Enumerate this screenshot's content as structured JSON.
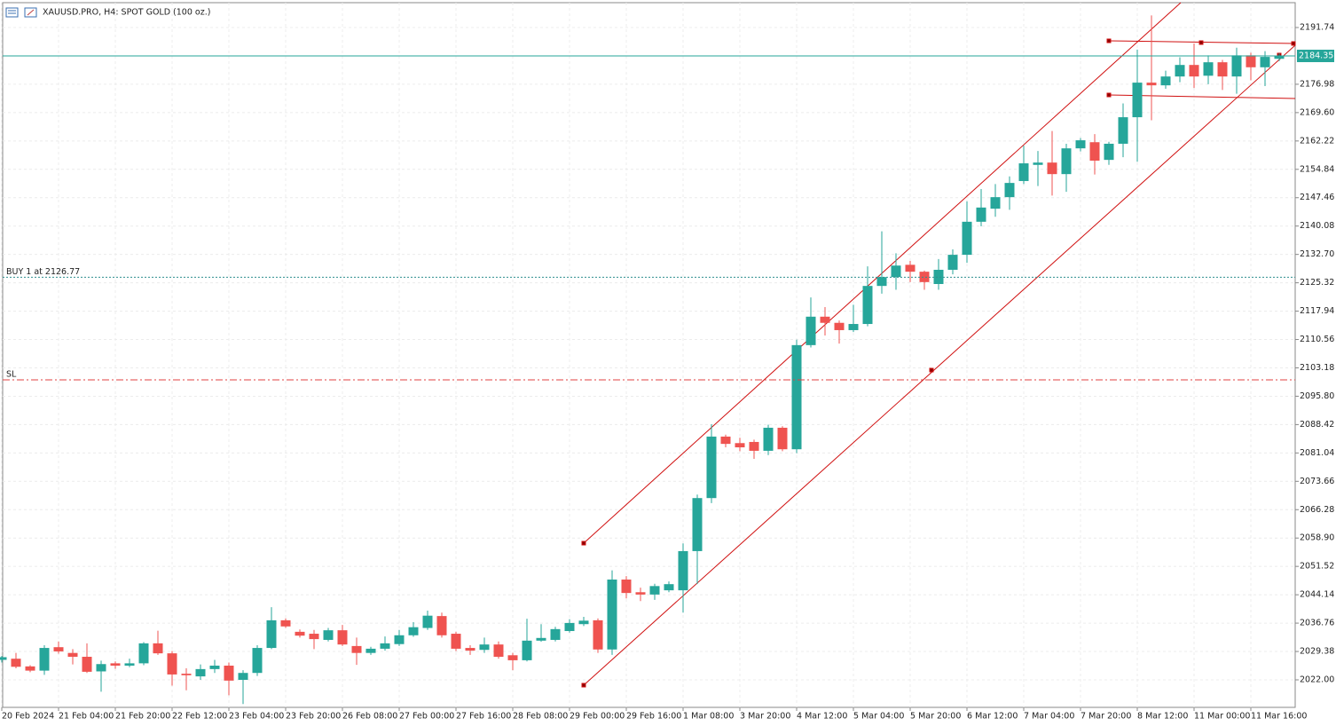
{
  "chart_data": {
    "type": "candlestick",
    "title": "XAUUSD.PRO, H4:  SPOT GOLD (100 oz.)",
    "categories": [
      "20 Feb 2024",
      null,
      null,
      null,
      "21 Feb 04:00",
      null,
      null,
      null,
      "21 Feb 20:00",
      null,
      null,
      null,
      "22 Feb 12:00",
      null,
      null,
      null,
      "23 Feb 04:00",
      null,
      null,
      null,
      "23 Feb 20:00",
      null,
      null,
      null,
      "26 Feb 08:00",
      null,
      null,
      null,
      "27 Feb 00:00",
      null,
      null,
      null,
      "27 Feb 16:00",
      null,
      null,
      null,
      "28 Feb 08:00",
      null,
      null,
      null,
      "29 Feb 00:00",
      null,
      null,
      null,
      "29 Feb 16:00",
      null,
      null,
      null,
      "1 Mar 08:00",
      null,
      null,
      null,
      "3 Mar 20:00",
      null,
      null,
      null,
      "4 Mar 12:00",
      null,
      null,
      null,
      "5 Mar 04:00",
      null,
      null,
      null,
      "5 Mar 20:00",
      null,
      null,
      null,
      "6 Mar 12:00",
      null,
      null,
      null,
      "7 Mar 04:00",
      null,
      null,
      null,
      "7 Mar 20:00",
      null,
      null,
      null,
      "8 Mar 12:00",
      null,
      null,
      null,
      "11 Mar 00:00",
      null,
      null,
      null,
      "11 Mar 16:00",
      null,
      null
    ],
    "open": [
      2027.2,
      2027.5,
      2025.5,
      2024.4,
      2030.5,
      2029.0,
      2028.0,
      2024.2,
      2026.3,
      2025.7,
      2026.3,
      2031.5,
      2028.9,
      2023.6,
      2022.9,
      2024.8,
      2025.7,
      2022.0,
      2023.8,
      2030.3,
      2037.5,
      2034.5,
      2034.0,
      2032.4,
      2034.9,
      2030.8,
      2029.0,
      2030.1,
      2031.3,
      2033.6,
      2035.5,
      2038.6,
      2034.0,
      2030.3,
      2029.8,
      2031.2,
      2028.4,
      2027.1,
      2032.2,
      2032.4,
      2034.7,
      2036.5,
      2037.5,
      2029.9,
      2048.1,
      2044.8,
      2044.2,
      2045.3,
      2045.3,
      2055.5,
      2069.3,
      2085.3,
      2083.6,
      2083.9,
      2081.6,
      2087.6,
      2082.0,
      2109.1,
      2116.5,
      2114.9,
      2113.0,
      2114.6,
      2124.5,
      2126.8,
      2130.0,
      2128.2,
      2125.0,
      2128.7,
      2132.6,
      2141.2,
      2144.6,
      2147.6,
      2151.8,
      2156.0,
      2156.6,
      2153.6,
      2160.3,
      2161.9,
      2157.3,
      2161.5,
      2168.4,
      2177.4,
      2176.7,
      2179.0,
      2182.0,
      2179.2,
      2182.7,
      2179.0,
      2184.5,
      2181.4,
      2183.6
    ],
    "high": [
      2028.2,
      2029.0,
      2025.8,
      2031.0,
      2032.0,
      2030.0,
      2031.5,
      2027.0,
      2026.8,
      2027.5,
      2031.8,
      2034.8,
      2029.5,
      2025.0,
      2026.0,
      2027.2,
      2026.5,
      2024.5,
      2031.0,
      2040.9,
      2038.0,
      2035.1,
      2035.0,
      2035.5,
      2036.3,
      2033.0,
      2030.6,
      2033.3,
      2035.0,
      2037.0,
      2040.0,
      2039.5,
      2034.5,
      2031.0,
      2033.0,
      2032.0,
      2029.0,
      2037.9,
      2036.5,
      2035.8,
      2037.8,
      2038.4,
      2038.0,
      2050.5,
      2049.0,
      2046.0,
      2047.0,
      2047.6,
      2057.5,
      2070.2,
      2088.5,
      2085.8,
      2085.0,
      2084.5,
      2088.4,
      2088.0,
      2110.5,
      2121.5,
      2119.0,
      2115.5,
      2119.6,
      2129.6,
      2138.7,
      2133.0,
      2131.0,
      2128.5,
      2131.5,
      2134.0,
      2146.5,
      2149.7,
      2151.0,
      2153.0,
      2161.0,
      2159.6,
      2164.8,
      2161.5,
      2163.0,
      2164.0,
      2162.0,
      2172.0,
      2186.0,
      2194.9,
      2180.5,
      2184.0,
      2187.6,
      2184.5,
      2183.3,
      2186.5,
      2185.2,
      2185.6,
      2185.0
    ],
    "low": [
      2026.5,
      2025.0,
      2024.0,
      2023.3,
      2028.8,
      2026.0,
      2023.8,
      2018.9,
      2024.9,
      2025.3,
      2025.8,
      2028.5,
      2020.5,
      2019.3,
      2022.0,
      2023.8,
      2018.0,
      2015.7,
      2023.0,
      2030.0,
      2035.5,
      2033.0,
      2030.0,
      2032.0,
      2030.8,
      2025.9,
      2028.5,
      2029.6,
      2030.8,
      2033.2,
      2035.0,
      2033.0,
      2029.5,
      2028.5,
      2029.0,
      2027.5,
      2024.5,
      2026.8,
      2031.9,
      2032.0,
      2034.3,
      2036.0,
      2029.0,
      2028.5,
      2043.2,
      2042.5,
      2042.8,
      2044.8,
      2039.5,
      2046.9,
      2068.0,
      2082.5,
      2081.5,
      2079.5,
      2080.5,
      2081.5,
      2081.0,
      2108.5,
      2111.6,
      2109.5,
      2112.5,
      2114.0,
      2122.5,
      2123.5,
      2125.5,
      2123.5,
      2123.5,
      2127.5,
      2130.5,
      2140.0,
      2142.5,
      2144.3,
      2151.0,
      2150.5,
      2148.0,
      2149.0,
      2159.5,
      2153.5,
      2156.0,
      2158.0,
      2156.8,
      2167.6,
      2175.8,
      2177.5,
      2176.0,
      2177.0,
      2175.5,
      2174.5,
      2178.0,
      2176.5,
      2183.0
    ],
    "close": [
      2027.9,
      2025.4,
      2024.4,
      2030.3,
      2029.4,
      2028.0,
      2024.1,
      2026.1,
      2025.7,
      2026.3,
      2031.5,
      2028.9,
      2023.4,
      2023.2,
      2024.8,
      2025.7,
      2021.8,
      2023.8,
      2030.3,
      2037.5,
      2035.9,
      2033.5,
      2032.6,
      2034.9,
      2031.2,
      2029.0,
      2030.1,
      2031.5,
      2033.6,
      2035.7,
      2038.7,
      2033.6,
      2030.1,
      2029.6,
      2031.2,
      2028.0,
      2027.1,
      2032.2,
      2032.9,
      2035.2,
      2036.8,
      2037.4,
      2029.9,
      2048.1,
      2044.6,
      2044.2,
      2046.4,
      2046.9,
      2055.5,
      2069.3,
      2085.3,
      2083.4,
      2082.5,
      2081.6,
      2087.6,
      2082.0,
      2109.1,
      2116.5,
      2114.9,
      2113.0,
      2114.6,
      2124.5,
      2126.8,
      2129.8,
      2128.2,
      2125.5,
      2128.7,
      2132.6,
      2141.2,
      2144.9,
      2147.6,
      2151.3,
      2156.4,
      2156.6,
      2153.6,
      2160.3,
      2162.4,
      2157.1,
      2161.5,
      2168.4,
      2177.4,
      2176.7,
      2179.0,
      2182.0,
      2179.0,
      2182.7,
      2179.0,
      2184.5,
      2181.4,
      2184.1,
      2184.35
    ],
    "up_color": "#26a69a",
    "down_color": "#ef5350",
    "ylim": [
      2014.84,
      2198.21
    ],
    "yticks": [
      {
        "value": 2022,
        "label": "2022.00"
      },
      2029.38,
      2036.76,
      2044.14,
      2051.52,
      {
        "value": 2058.9,
        "label": "2058.90"
      },
      2066.28,
      2073.66,
      2081.04,
      2088.42,
      {
        "value": 2095.8,
        "label": "2095.80"
      },
      2103.18,
      2110.56,
      2117.94,
      2125.32,
      {
        "value": 2132.7,
        "label": "2132.70"
      },
      2140.08,
      2147.46,
      2154.84,
      2162.22,
      {
        "value": 2169.6,
        "label": "2169.60"
      },
      2176.98,
      2191.74
    ],
    "grid": true,
    "last_price": 2184.35,
    "orders": [
      {
        "label": "BUY 1 at 2126.77",
        "value": 2126.77,
        "color": "#2f8f8f"
      }
    ],
    "stop_loss": {
      "label": "SL",
      "value": 2100.06,
      "color": "#e04040"
    }
  }
}
